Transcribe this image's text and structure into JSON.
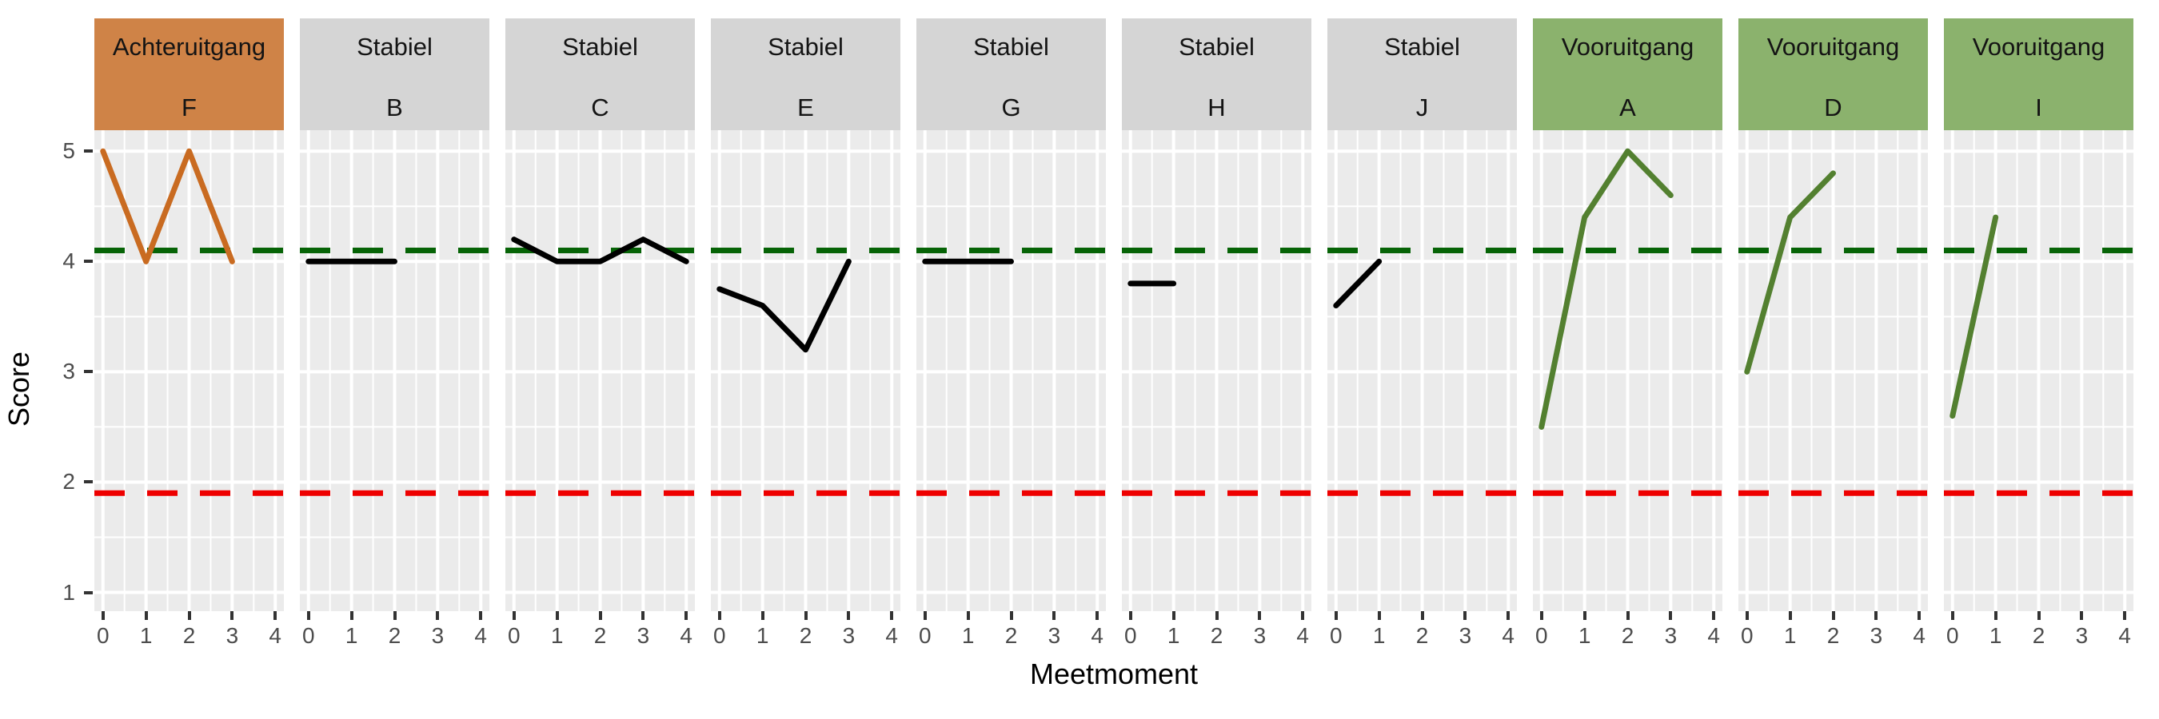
{
  "figure": {
    "y_axis": {
      "title": "Score",
      "ticks": [
        5,
        4,
        3,
        2,
        1
      ]
    },
    "x_axis": {
      "title": "Meetmoment",
      "ticks": [
        0,
        1,
        2,
        3,
        4
      ]
    }
  },
  "colors": {
    "panel_background": "#EBEBEB",
    "gridline": "#FFFFFF",
    "tick_mark": "#333333",
    "tick_label": "#4D4D4D",
    "strip_text": "#141414",
    "strip_achteruitgang": "#CF8347",
    "strip_stabiel": "#D5D5D5",
    "strip_vooruitgang": "#8BB26D",
    "line_achteruitgang": "#C96B21",
    "line_stabiel": "#000000",
    "line_vooruitgang": "#538030",
    "ref_upper": "#066306",
    "ref_lower": "#EE0000"
  },
  "chart_data": {
    "type": "line",
    "faceted": true,
    "title": "",
    "xlabel": "Meetmoment",
    "ylabel": "Score",
    "x_ticks": [
      0,
      1,
      2,
      3,
      4
    ],
    "y_ticks": [
      1,
      2,
      3,
      4,
      5
    ],
    "xlim": [
      -0.2,
      4.2
    ],
    "ylim": [
      0.83,
      5.19
    ],
    "grid": "major-and-minor",
    "legend_position": "none",
    "reference_lines": [
      {
        "name": "upper-threshold",
        "y": 4.1,
        "style": "dashed",
        "color": "#066306"
      },
      {
        "name": "lower-threshold",
        "y": 1.9,
        "style": "dashed",
        "color": "#EE0000"
      }
    ],
    "panels": [
      {
        "group": "Achteruitgang",
        "id": "F",
        "strip_color": "#CF8347",
        "line_color": "#C96B21",
        "x": [
          0,
          1,
          2,
          3
        ],
        "y": [
          5,
          4,
          5,
          4
        ]
      },
      {
        "group": "Stabiel",
        "id": "B",
        "strip_color": "#D5D5D5",
        "line_color": "#000000",
        "x": [
          0,
          1,
          2
        ],
        "y": [
          4,
          4,
          4
        ]
      },
      {
        "group": "Stabiel",
        "id": "C",
        "strip_color": "#D5D5D5",
        "line_color": "#000000",
        "x": [
          0,
          1,
          2,
          3,
          4
        ],
        "y": [
          4.2,
          4,
          4,
          4.2,
          4
        ]
      },
      {
        "group": "Stabiel",
        "id": "E",
        "strip_color": "#D5D5D5",
        "line_color": "#000000",
        "x": [
          0,
          1,
          2,
          3
        ],
        "y": [
          3.75,
          3.6,
          3.2,
          4
        ]
      },
      {
        "group": "Stabiel",
        "id": "G",
        "strip_color": "#D5D5D5",
        "line_color": "#000000",
        "x": [
          0,
          1,
          2
        ],
        "y": [
          4,
          4,
          4
        ]
      },
      {
        "group": "Stabiel",
        "id": "H",
        "strip_color": "#D5D5D5",
        "line_color": "#000000",
        "x": [
          0,
          1
        ],
        "y": [
          3.8,
          3.8
        ]
      },
      {
        "group": "Stabiel",
        "id": "J",
        "strip_color": "#D5D5D5",
        "line_color": "#000000",
        "x": [
          0,
          1
        ],
        "y": [
          3.6,
          4
        ]
      },
      {
        "group": "Vooruitgang",
        "id": "A",
        "strip_color": "#8BB26D",
        "line_color": "#538030",
        "x": [
          0,
          1,
          2,
          3
        ],
        "y": [
          2.5,
          4.4,
          5,
          4.6
        ]
      },
      {
        "group": "Vooruitgang",
        "id": "D",
        "strip_color": "#8BB26D",
        "line_color": "#538030",
        "x": [
          0,
          1,
          2
        ],
        "y": [
          3,
          4.4,
          4.8
        ]
      },
      {
        "group": "Vooruitgang",
        "id": "I",
        "strip_color": "#8BB26D",
        "line_color": "#538030",
        "x": [
          0,
          1
        ],
        "y": [
          2.6,
          4.4
        ]
      }
    ]
  }
}
